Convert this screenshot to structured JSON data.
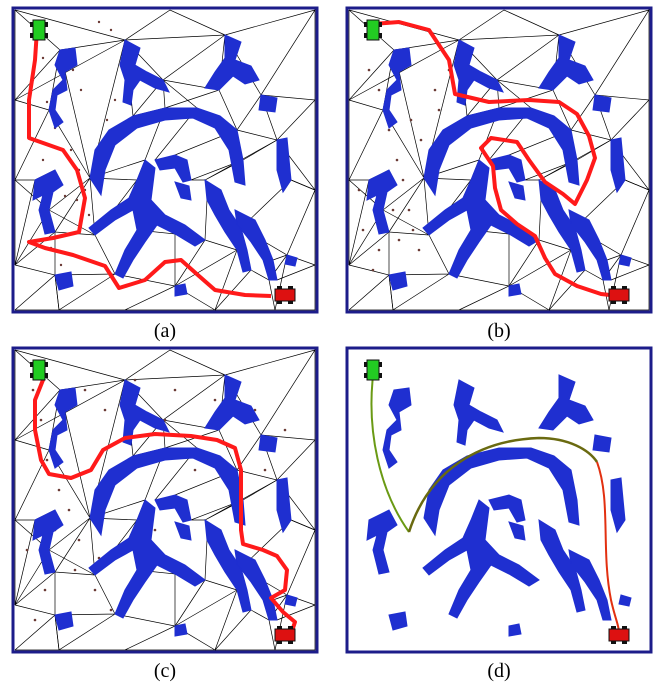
{
  "figure": {
    "panels": [
      {
        "id": "a",
        "caption": "(a)",
        "mode": "triangulation",
        "path_color": "#ff1a1a",
        "samples": "scattered-left"
      },
      {
        "id": "b",
        "caption": "(b)",
        "mode": "triangulation",
        "path_color": "#ff1a1a",
        "samples": "left-and-middle"
      },
      {
        "id": "c",
        "caption": "(c)",
        "mode": "triangulation",
        "path_color": "#ff1a1a",
        "samples": "dense"
      },
      {
        "id": "d",
        "caption": "(d)",
        "mode": "smooth-trajectory",
        "path_color": "#3a7d10",
        "samples": "none"
      }
    ],
    "colors": {
      "obstacle": "#1f2fd0",
      "frame": "#1c1c8a",
      "mesh": "#000000",
      "samples": "#6b3a34",
      "planned_path": "#ff1a1a",
      "start_robot": "#22cc22",
      "goal_robot": "#dd1111"
    },
    "icons": [
      "start-robot-icon",
      "goal-robot-icon"
    ]
  }
}
